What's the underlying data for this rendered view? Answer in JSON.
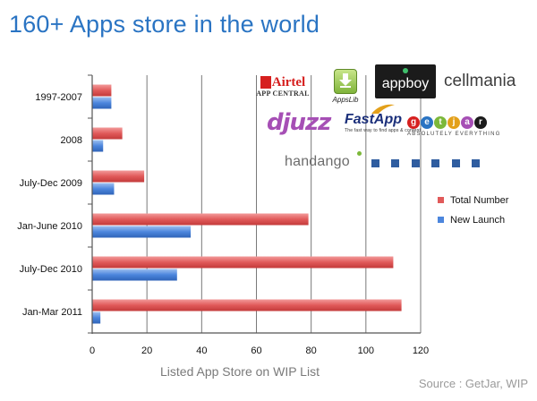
{
  "slide": {
    "title": "160+ Apps store in the world",
    "source": "Source : GetJar, WIP"
  },
  "logos": {
    "airtel": {
      "name": "Airtel",
      "tagline": "APP CENTRAL"
    },
    "appslib": {
      "name": "AppsLib"
    },
    "appboy": {
      "name": "appboy"
    },
    "cellmania": {
      "name": "cellmania"
    },
    "djuzz": {
      "name": "djuzz"
    },
    "fastapp": {
      "name": "FastApp",
      "tagline": "The fast way to find apps & content"
    },
    "getjar": {
      "name": "getjar",
      "tagline": "ABSOLUTELY EVERYTHING"
    },
    "handango": {
      "name": "handango"
    },
    "more_dots_count": 6,
    "brand_colors": {
      "airtel": "#d6201f",
      "appboy_bg": "#1b1b1b",
      "cellmania_accent": "#e3701a",
      "djuzz": "#a64fb5",
      "fastapp": "#1b2f7a",
      "getjar": [
        "#d6201f",
        "#2a74c3",
        "#7cb83a",
        "#e3a01a",
        "#a64fb5",
        "#1b1b1b"
      ],
      "handango_accent": "#7cb83a",
      "dots": "#2f5da0"
    }
  },
  "chart_data": {
    "type": "bar",
    "orientation": "horizontal",
    "categories": [
      "1997-2007",
      "2008",
      "July-Dec 2009",
      "Jan-June 2010",
      "July-Dec 2010",
      "Jan-Mar 2011"
    ],
    "series": [
      {
        "name": "Total Number",
        "color": "#e15a5a",
        "values": [
          7,
          11,
          19,
          79,
          110,
          113
        ]
      },
      {
        "name": "New Launch",
        "color": "#4c86dd",
        "values": [
          7,
          4,
          8,
          36,
          31,
          3
        ]
      }
    ],
    "xlabel": "Listed App Store on WIP List",
    "xlim": [
      0,
      120
    ],
    "xticks": [
      0,
      20,
      40,
      60,
      80,
      100,
      120
    ],
    "grid": true,
    "legend_position": "right"
  }
}
